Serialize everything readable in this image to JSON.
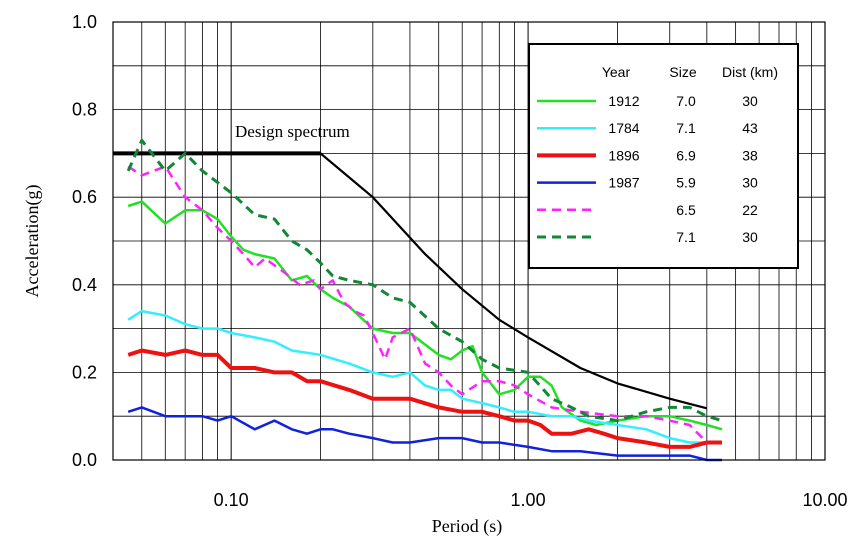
{
  "chart_data": {
    "type": "line",
    "xscale": "log",
    "xlim": [
      0.04,
      10
    ],
    "ylim": [
      0,
      1
    ],
    "xlabel": "Period (s)",
    "ylabel": "Acceleration(g)",
    "x_ticks": [
      "0.10",
      "1.00",
      "10.00"
    ],
    "y_ticks": [
      "0.0",
      "0.2",
      "0.4",
      "0.6",
      "0.8",
      "1.0"
    ],
    "grid": true,
    "annotation": "Design spectrum",
    "legend": {
      "placement": "top-right",
      "headers": [
        "Year",
        "Size",
        "Dist (km)"
      ],
      "entries": [
        {
          "year": "1912",
          "size": "7.0",
          "dist": "30",
          "color": "#22e022",
          "dash": "solid",
          "width": 2.5
        },
        {
          "year": "1784",
          "size": "7.1",
          "dist": "43",
          "color": "#33eeff",
          "dash": "solid",
          "width": 2.5
        },
        {
          "year": "1896",
          "size": "6.9",
          "dist": "38",
          "color": "#ee1111",
          "dash": "solid",
          "width": 4
        },
        {
          "year": "1987",
          "size": "5.9",
          "dist": "30",
          "color": "#1122dd",
          "dash": "solid",
          "width": 2.5
        },
        {
          "year": "",
          "size": "6.5",
          "dist": "22",
          "color": "#ff22ff",
          "dash": "dashed",
          "width": 2.5
        },
        {
          "year": "",
          "size": "7.1",
          "dist": "30",
          "color": "#118833",
          "dash": "dashed",
          "width": 3
        }
      ]
    },
    "design_spectrum": {
      "color": "#000000",
      "x": [
        0.04,
        0.2,
        0.3,
        0.45,
        0.6,
        0.8,
        1.0,
        1.5,
        2.0,
        3.0,
        4.0
      ],
      "y": [
        0.7,
        0.7,
        0.6,
        0.47,
        0.39,
        0.32,
        0.28,
        0.21,
        0.175,
        0.14,
        0.118
      ]
    },
    "series": [
      {
        "legend_index": 0,
        "x": [
          0.045,
          0.05,
          0.06,
          0.07,
          0.08,
          0.09,
          0.1,
          0.11,
          0.12,
          0.14,
          0.16,
          0.18,
          0.2,
          0.22,
          0.25,
          0.3,
          0.35,
          0.4,
          0.5,
          0.55,
          0.6,
          0.65,
          0.7,
          0.8,
          0.9,
          1.0,
          1.1,
          1.2,
          1.3,
          1.5,
          1.7,
          2.0,
          2.5,
          3.0,
          3.5,
          4.0,
          4.5
        ],
        "y": [
          0.58,
          0.59,
          0.54,
          0.57,
          0.57,
          0.55,
          0.51,
          0.48,
          0.47,
          0.46,
          0.41,
          0.42,
          0.39,
          0.37,
          0.35,
          0.3,
          0.29,
          0.29,
          0.24,
          0.23,
          0.25,
          0.26,
          0.2,
          0.15,
          0.16,
          0.19,
          0.19,
          0.17,
          0.12,
          0.09,
          0.08,
          0.09,
          0.1,
          0.1,
          0.09,
          0.08,
          0.07
        ]
      },
      {
        "legend_index": 1,
        "x": [
          0.045,
          0.05,
          0.06,
          0.07,
          0.08,
          0.09,
          0.1,
          0.12,
          0.14,
          0.16,
          0.2,
          0.25,
          0.3,
          0.35,
          0.4,
          0.45,
          0.5,
          0.55,
          0.6,
          0.7,
          0.8,
          0.9,
          1.0,
          1.2,
          1.4,
          1.6,
          2.0,
          2.5,
          3.0,
          3.5,
          4.0,
          4.5
        ],
        "y": [
          0.32,
          0.34,
          0.33,
          0.31,
          0.3,
          0.3,
          0.29,
          0.28,
          0.27,
          0.25,
          0.24,
          0.22,
          0.2,
          0.19,
          0.2,
          0.17,
          0.16,
          0.16,
          0.14,
          0.13,
          0.12,
          0.11,
          0.11,
          0.1,
          0.1,
          0.09,
          0.08,
          0.07,
          0.05,
          0.04,
          0.04,
          0.04
        ]
      },
      {
        "legend_index": 2,
        "x": [
          0.045,
          0.05,
          0.06,
          0.07,
          0.08,
          0.09,
          0.1,
          0.12,
          0.14,
          0.16,
          0.18,
          0.2,
          0.25,
          0.3,
          0.35,
          0.4,
          0.5,
          0.6,
          0.7,
          0.8,
          0.9,
          1.0,
          1.1,
          1.2,
          1.4,
          1.6,
          1.8,
          2.0,
          2.5,
          3.0,
          3.5,
          4.0,
          4.5
        ],
        "y": [
          0.24,
          0.25,
          0.24,
          0.25,
          0.24,
          0.24,
          0.21,
          0.21,
          0.2,
          0.2,
          0.18,
          0.18,
          0.16,
          0.14,
          0.14,
          0.14,
          0.12,
          0.11,
          0.11,
          0.1,
          0.09,
          0.09,
          0.08,
          0.06,
          0.06,
          0.07,
          0.06,
          0.05,
          0.04,
          0.03,
          0.03,
          0.04,
          0.04
        ]
      },
      {
        "legend_index": 3,
        "x": [
          0.045,
          0.05,
          0.06,
          0.07,
          0.08,
          0.09,
          0.1,
          0.12,
          0.14,
          0.16,
          0.18,
          0.2,
          0.22,
          0.25,
          0.3,
          0.35,
          0.4,
          0.5,
          0.6,
          0.7,
          0.8,
          1.0,
          1.2,
          1.5,
          2.0,
          2.5,
          3.0,
          3.5,
          4.0,
          4.5
        ],
        "y": [
          0.11,
          0.12,
          0.1,
          0.1,
          0.1,
          0.09,
          0.1,
          0.07,
          0.09,
          0.07,
          0.06,
          0.07,
          0.07,
          0.06,
          0.05,
          0.04,
          0.04,
          0.05,
          0.05,
          0.04,
          0.04,
          0.03,
          0.02,
          0.02,
          0.01,
          0.01,
          0.01,
          0.01,
          0.0,
          0.0
        ]
      },
      {
        "legend_index": 4,
        "x": [
          0.045,
          0.05,
          0.06,
          0.07,
          0.08,
          0.09,
          0.1,
          0.11,
          0.12,
          0.13,
          0.15,
          0.17,
          0.19,
          0.2,
          0.22,
          0.24,
          0.26,
          0.28,
          0.3,
          0.33,
          0.35,
          0.4,
          0.45,
          0.5,
          0.55,
          0.6,
          0.7,
          0.8,
          0.9,
          1.0,
          1.2,
          1.5,
          2.0,
          2.5,
          3.0,
          3.5,
          4.0
        ],
        "y": [
          0.67,
          0.65,
          0.67,
          0.6,
          0.57,
          0.53,
          0.5,
          0.47,
          0.44,
          0.46,
          0.43,
          0.4,
          0.41,
          0.39,
          0.41,
          0.36,
          0.34,
          0.33,
          0.29,
          0.23,
          0.28,
          0.3,
          0.22,
          0.2,
          0.17,
          0.15,
          0.18,
          0.18,
          0.17,
          0.15,
          0.12,
          0.11,
          0.1,
          0.1,
          0.09,
          0.08,
          0.04
        ]
      },
      {
        "legend_index": 5,
        "x": [
          0.045,
          0.05,
          0.06,
          0.07,
          0.08,
          0.1,
          0.12,
          0.14,
          0.16,
          0.18,
          0.2,
          0.22,
          0.25,
          0.3,
          0.35,
          0.4,
          0.5,
          0.6,
          0.7,
          0.8,
          1.0,
          1.2,
          1.4,
          1.6,
          2.0,
          2.5,
          3.0,
          3.5,
          4.0,
          4.5
        ],
        "y": [
          0.66,
          0.73,
          0.66,
          0.7,
          0.66,
          0.61,
          0.56,
          0.55,
          0.5,
          0.48,
          0.45,
          0.42,
          0.41,
          0.4,
          0.37,
          0.36,
          0.3,
          0.27,
          0.23,
          0.21,
          0.2,
          0.14,
          0.12,
          0.1,
          0.09,
          0.11,
          0.12,
          0.12,
          0.1,
          0.09
        ]
      }
    ]
  }
}
